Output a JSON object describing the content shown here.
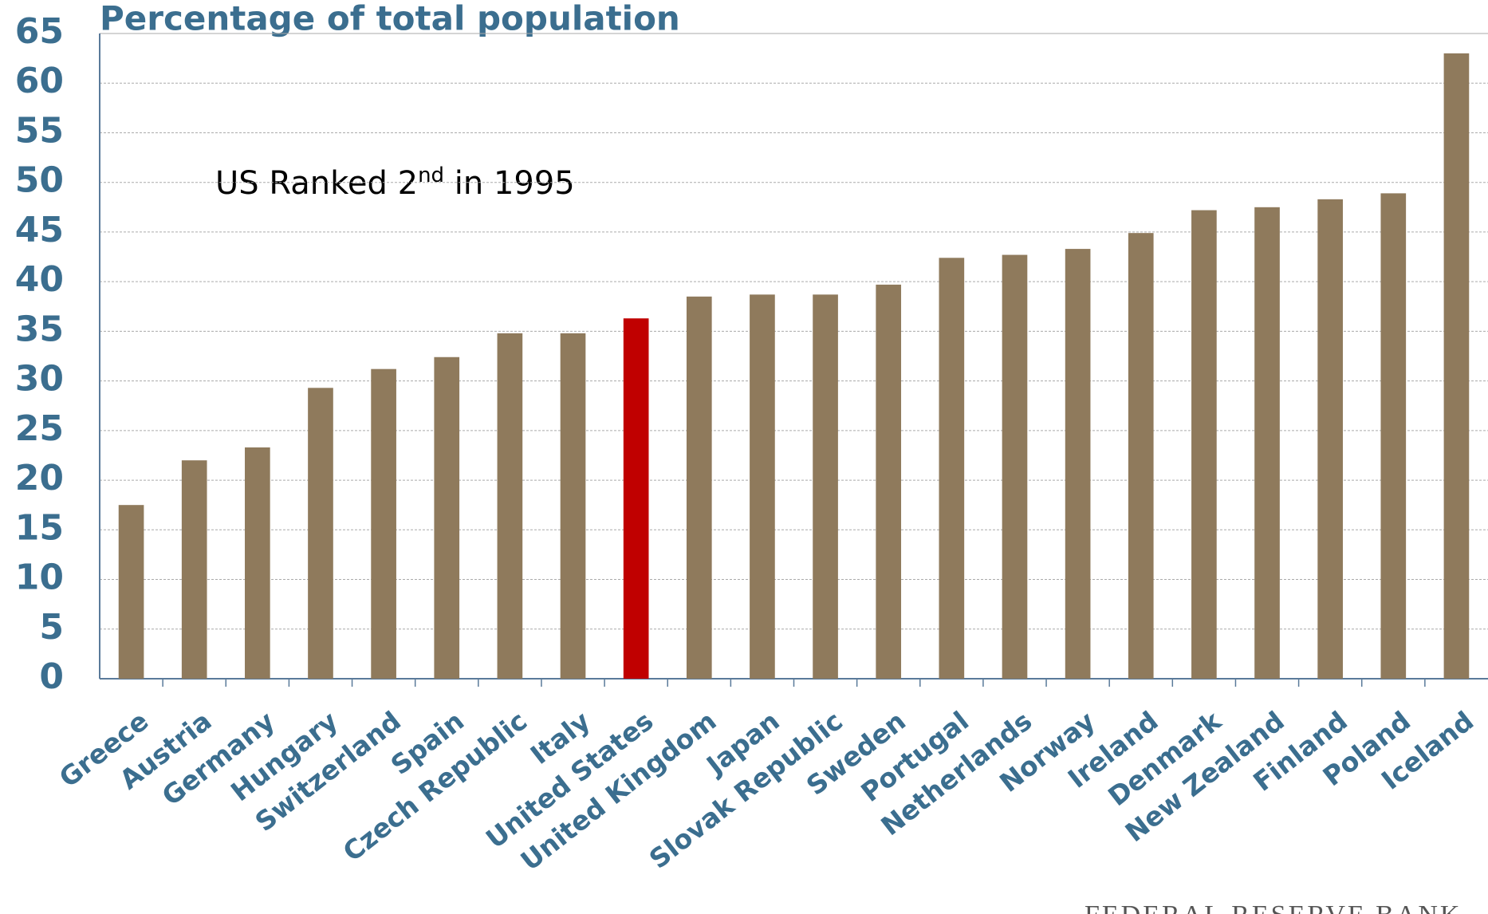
{
  "chart_data": {
    "type": "bar",
    "title": "Percentage of total population",
    "annotation": {
      "text": "US Ranked 2",
      "superscript": "nd",
      "rest": " in 1995"
    },
    "footer": "FEDERAL RESERVE BANK",
    "categories": [
      "Greece",
      "Austria",
      "Germany",
      "Hungary",
      "Switzerland",
      "Spain",
      "Czech Republic",
      "Italy",
      "United States",
      "United Kingdom",
      "Japan",
      "Slovak Republic",
      "Sweden",
      "Portugal",
      "Netherlands",
      "Norway",
      "Ireland",
      "Denmark",
      "New Zealand",
      "Finland",
      "Poland",
      "Iceland"
    ],
    "values": [
      17.5,
      22,
      23.3,
      29.3,
      31.2,
      32.4,
      34.8,
      34.8,
      36.3,
      38.5,
      38.7,
      38.7,
      39.7,
      42.4,
      42.7,
      43.3,
      44.9,
      47.2,
      47.5,
      48.3,
      48.9,
      63
    ],
    "colors": [
      "#8f7a5c",
      "#8f7a5c",
      "#8f7a5c",
      "#8f7a5c",
      "#8f7a5c",
      "#8f7a5c",
      "#8f7a5c",
      "#8f7a5c",
      "#c00000",
      "#8f7a5c",
      "#8f7a5c",
      "#8f7a5c",
      "#8f7a5c",
      "#8f7a5c",
      "#8f7a5c",
      "#8f7a5c",
      "#8f7a5c",
      "#8f7a5c",
      "#8f7a5c",
      "#8f7a5c",
      "#8f7a5c",
      "#8f7a5c"
    ],
    "ylim": [
      0,
      65
    ],
    "yticks": [
      0,
      5,
      10,
      15,
      20,
      25,
      30,
      35,
      40,
      45,
      50,
      55,
      60,
      65
    ],
    "grid": true
  }
}
